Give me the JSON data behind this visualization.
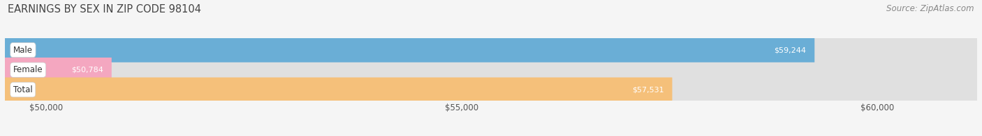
{
  "title": "EARNINGS BY SEX IN ZIP CODE 98104",
  "source": "Source: ZipAtlas.com",
  "categories": [
    "Male",
    "Female",
    "Total"
  ],
  "values": [
    59244,
    50784,
    57531
  ],
  "bar_colors": [
    "#6aaed6",
    "#f4a7c0",
    "#f5c07a"
  ],
  "xmin": 49500,
  "xmax": 61200,
  "xticks": [
    50000,
    55000,
    60000
  ],
  "xtick_labels": [
    "$50,000",
    "$55,000",
    "$60,000"
  ],
  "background_color": "#f5f5f5",
  "bar_background_color": "#e0e0e0",
  "title_fontsize": 10.5,
  "source_fontsize": 8.5,
  "bar_height": 0.62,
  "value_labels": [
    "$59,244",
    "$50,784",
    "$57,531"
  ]
}
